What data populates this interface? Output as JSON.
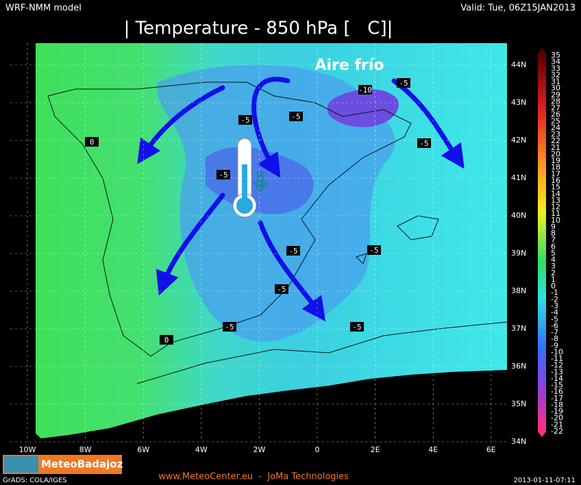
{
  "header": {
    "model": "WRF-NMM model",
    "valid": "Valid: Tue, 06Z15JAN2013",
    "title": "| Temperature - 850 hPa [   C]|"
  },
  "annotation": "Aire frío",
  "contour_labels": [
    "-10",
    "-5",
    "-5",
    "-5",
    "-5",
    "0",
    "-5",
    "-5",
    "-5",
    "-5",
    "-5",
    "-5",
    "0"
  ],
  "longitudes": [
    "10W",
    "8W",
    "6W",
    "4W",
    "2W",
    "0",
    "2E",
    "4E",
    "6E"
  ],
  "latitudes": [
    "44N",
    "43N",
    "42N",
    "41N",
    "40N",
    "39N",
    "38N",
    "37N",
    "36N",
    "35N",
    "34N"
  ],
  "colorbar": [
    35,
    34,
    33,
    32,
    31,
    30,
    29,
    28,
    27,
    26,
    25,
    24,
    23,
    22,
    21,
    20,
    19,
    18,
    17,
    16,
    15,
    14,
    13,
    12,
    11,
    10,
    9,
    8,
    7,
    6,
    5,
    4,
    3,
    2,
    1,
    0,
    -1,
    -2,
    -3,
    -4,
    -5,
    -6,
    -7,
    -8,
    -9,
    -10,
    -11,
    -12,
    -13,
    -14,
    -15,
    -16,
    -17,
    -18,
    -19,
    -20,
    -21,
    -22
  ],
  "footer": {
    "brand": "MeteoBadajoz",
    "site": "www.MeteoCenter.eu  -  JoMa Technologies",
    "credit": "GrADS: COLA/IGES",
    "timestamp": "2013-01-11-07:11"
  }
}
